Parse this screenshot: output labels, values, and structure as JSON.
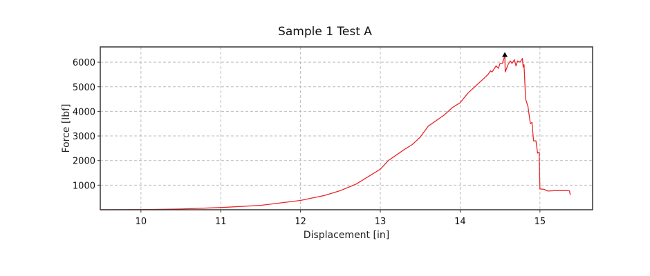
{
  "chart_data": {
    "type": "line",
    "title": "Sample 1 Test A",
    "xlabel": "Displacement [in]",
    "ylabel": "Force [lbf]",
    "xlim": [
      9.49,
      15.66
    ],
    "ylim": [
      0,
      6620
    ],
    "xticks": [
      10,
      11,
      12,
      13,
      14,
      15
    ],
    "yticks": [
      1000,
      2000,
      3000,
      4000,
      5000,
      6000
    ],
    "grid": true,
    "legend": null,
    "series": [
      {
        "name": "Force",
        "color": "#e8252a",
        "x": [
          9.49,
          10.0,
          10.5,
          11.0,
          11.5,
          12.0,
          12.3,
          12.5,
          12.7,
          12.9,
          13.0,
          13.1,
          13.3,
          13.4,
          13.5,
          13.6,
          13.8,
          13.9,
          14.0,
          14.1,
          14.2,
          14.3,
          14.35,
          14.38,
          14.4,
          14.45,
          14.48,
          14.5,
          14.53,
          14.56,
          14.565,
          14.6,
          14.63,
          14.65,
          14.68,
          14.7,
          14.72,
          14.75,
          14.78,
          14.79,
          14.8,
          14.82,
          14.85,
          14.88,
          14.9,
          14.92,
          14.95,
          14.97,
          14.99,
          15.0,
          15.05,
          15.1,
          15.2,
          15.3,
          15.37,
          15.38
        ],
        "y": [
          0,
          5,
          30,
          90,
          180,
          380,
          580,
          780,
          1050,
          1450,
          1650,
          2000,
          2450,
          2650,
          2950,
          3400,
          3850,
          4150,
          4350,
          4750,
          5050,
          5350,
          5500,
          5650,
          5600,
          5850,
          5750,
          5950,
          5950,
          6270,
          5600,
          5900,
          6050,
          5950,
          6100,
          5850,
          6050,
          6000,
          6150,
          5800,
          5900,
          4500,
          4200,
          3500,
          3550,
          2800,
          2800,
          2300,
          2350,
          850,
          830,
          760,
          780,
          780,
          770,
          600
        ]
      }
    ],
    "annotations": [
      {
        "type": "marker",
        "shape": "triangle-up",
        "x": 14.56,
        "y": 6270,
        "color": "#000000",
        "label": "peak"
      }
    ]
  }
}
